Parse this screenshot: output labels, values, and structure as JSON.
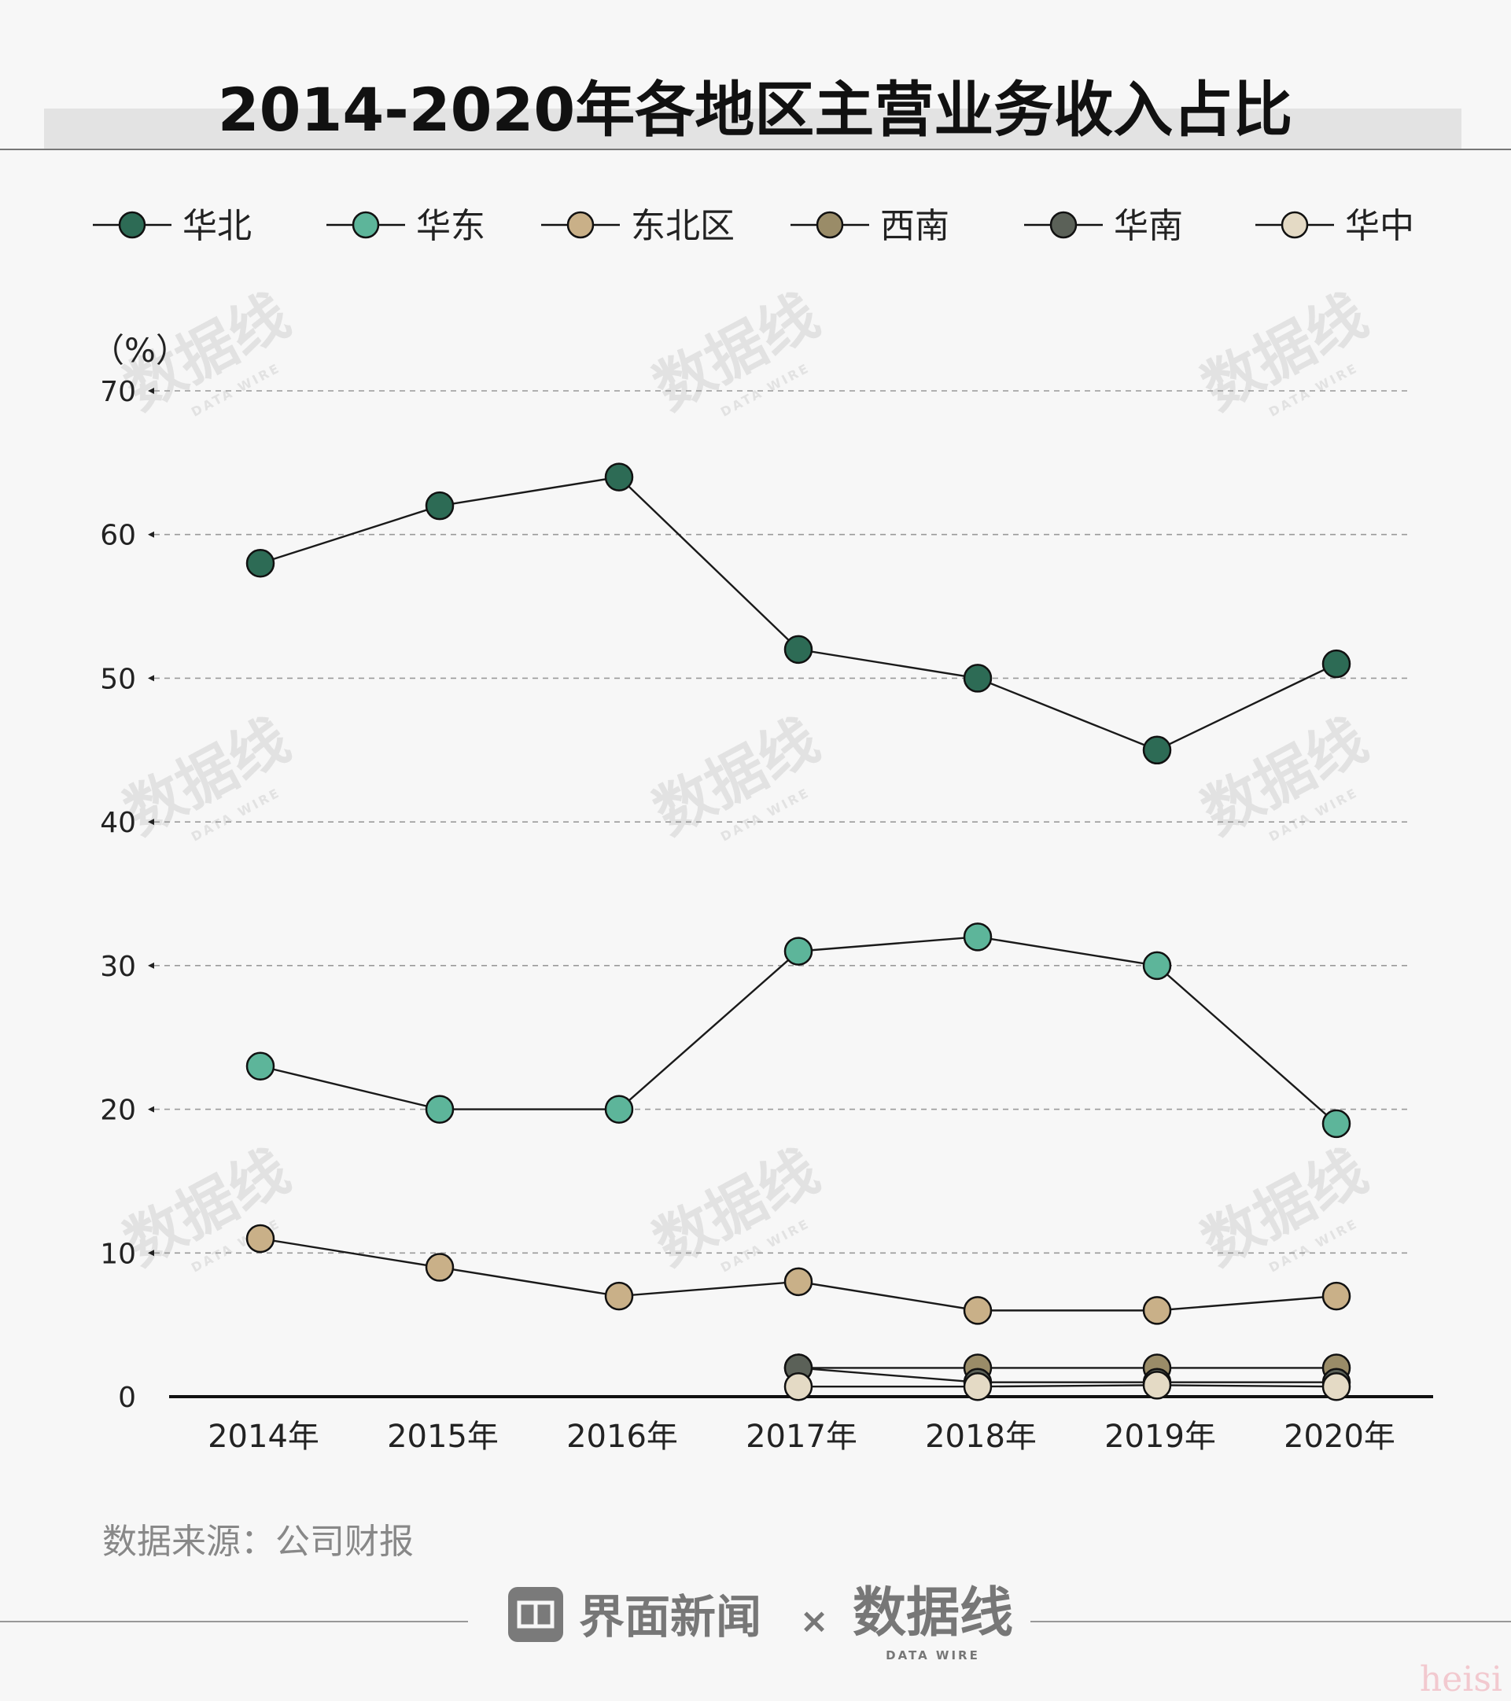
{
  "chart_data": {
    "type": "line",
    "title": "2014-2020年各地区主营业务收入占比",
    "unit_label": "（%）",
    "categories": [
      "2014年",
      "2015年",
      "2016年",
      "2017年",
      "2018年",
      "2019年",
      "2020年"
    ],
    "ylim": [
      0,
      70
    ],
    "yticks": [
      0,
      10,
      20,
      30,
      40,
      50,
      60,
      70
    ],
    "grid": true,
    "legend_position": "top",
    "series": [
      {
        "name": "华北",
        "color": "#2d6b55",
        "values": [
          58,
          62,
          64,
          52,
          50,
          45,
          51
        ]
      },
      {
        "name": "华东",
        "color": "#5db59a",
        "values": [
          23,
          20,
          20,
          31,
          32,
          30,
          19
        ]
      },
      {
        "name": "东北区",
        "color": "#c9b088",
        "values": [
          11,
          9,
          7,
          8,
          6,
          6,
          7
        ]
      },
      {
        "name": "西南",
        "color": "#9a8c68",
        "values": [
          null,
          null,
          null,
          2,
          2,
          2,
          2
        ]
      },
      {
        "name": "华南",
        "color": "#5b6158",
        "values": [
          null,
          null,
          null,
          2,
          1,
          1,
          1
        ]
      },
      {
        "name": "华中",
        "color": "#e4dac5",
        "values": [
          null,
          null,
          null,
          0.7,
          0.7,
          0.8,
          0.7
        ]
      }
    ]
  },
  "source": "数据来源：公司财报",
  "footer": {
    "brand_name": "界面新闻",
    "separator": "×",
    "partner_logo": "数据线",
    "partner_sub": "DATA WIRE"
  },
  "watermark": {
    "text": "数据线",
    "sub": "DATA WIRE"
  },
  "credit": "heisi"
}
